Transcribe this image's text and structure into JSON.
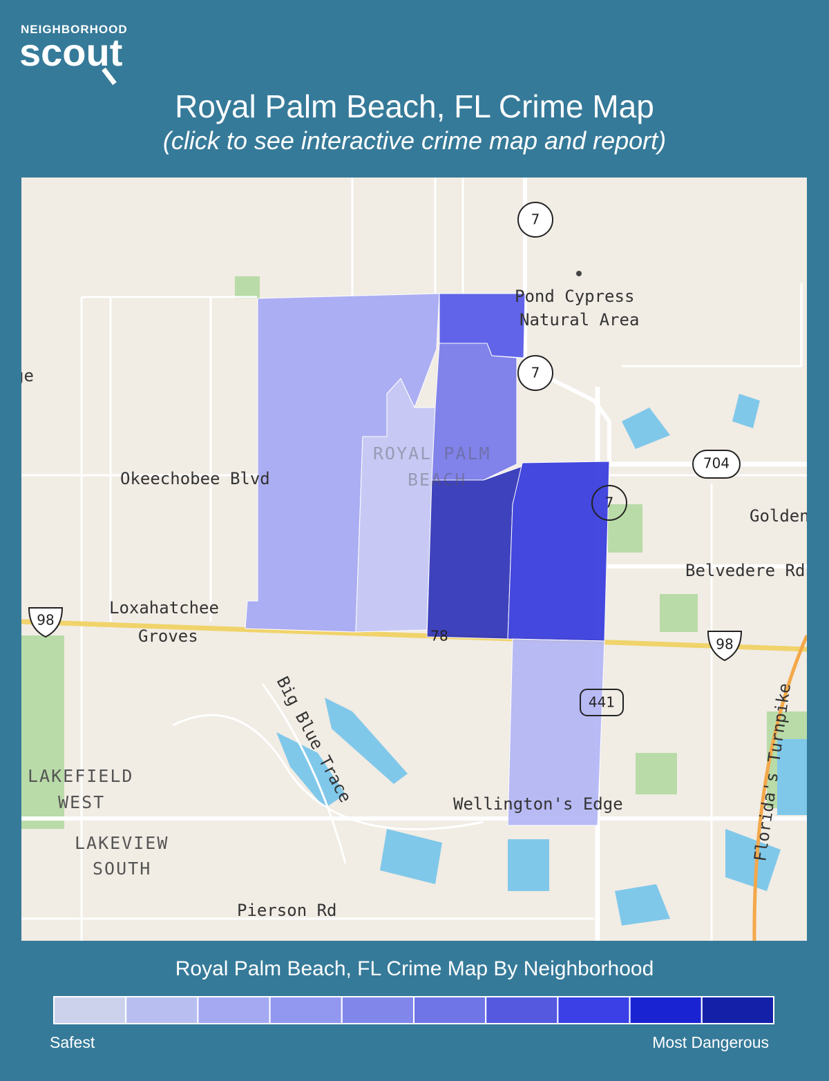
{
  "header": {
    "brand_top": "NEIGHBORHOOD",
    "brand": "scout",
    "title": "Royal Palm Beach, FL Crime Map",
    "subtitle": "(click to see interactive crime map and report)"
  },
  "map": {
    "labels": {
      "route_7_a": "7",
      "route_7_b": "7",
      "route_7_c": "7",
      "route_704": "704",
      "route_98_a": "98",
      "route_98_b": "98",
      "route_78": "78",
      "route_441": "441",
      "pond_1": "Pond Cypress",
      "pond_2": "Natural Area",
      "edge_left": "ge",
      "okeechobee": "Okeechobee Blvd",
      "golden": "Golden",
      "belvedere": "Belvedere Rd",
      "lox_1": "Loxahatchee",
      "lox_2": "Groves",
      "big_blue": "Big Blue Trace",
      "lakefield_1": "LAKEFIELD",
      "lakefield_2": "WEST",
      "lakeview_1": "LAKEVIEW",
      "lakeview_2": "SOUTH",
      "wellington": "Wellington's Edge",
      "pierson": "Pierson Rd",
      "turnpike": "Florida's Turnpike",
      "rpb_1": "ROYAL PALM",
      "rpb_2": "BEACH"
    }
  },
  "legend": {
    "title": "Royal Palm Beach, FL Crime Map By Neighborhood",
    "colors": [
      "#ccd2ec",
      "#b9bef0",
      "#a4a9f2",
      "#9297ef",
      "#8187ea",
      "#6f74e6",
      "#5559e0",
      "#3a40e6",
      "#1a23d2",
      "#1520a8"
    ],
    "low_label": "Safest",
    "high_label": "Most Dangerous"
  }
}
